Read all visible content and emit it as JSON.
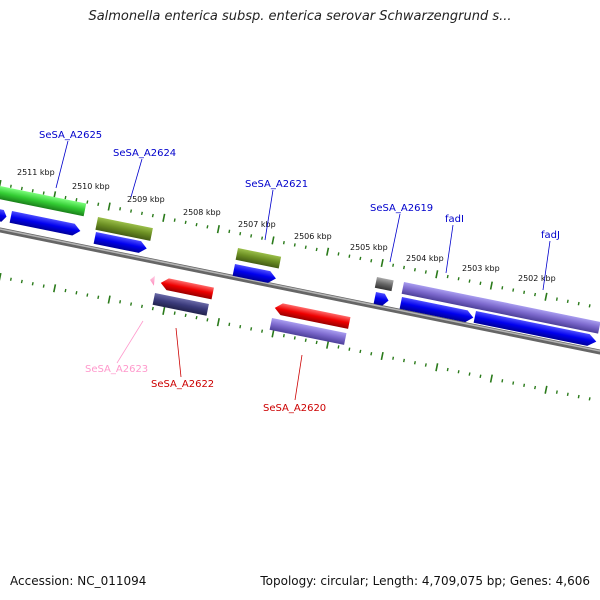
{
  "title": "Salmonella enterica subsp. enterica serovar Schwarzengrund s...",
  "footer": {
    "accession": "Accession: NC_011094",
    "stats": "Topology: circular; Length: 4,709,075 bp; Genes: 4,606"
  },
  "ticks": [
    "2511 kbp",
    "2510 kbp",
    "2509 kbp",
    "2508 kbp",
    "2507 kbp",
    "2506 kbp",
    "2505 kbp",
    "2504 kbp",
    "2503 kbp",
    "2502 kbp"
  ],
  "gene_labels": [
    {
      "text": "SeSA_A2625",
      "color": "#0000cc"
    },
    {
      "text": "SeSA_A2624",
      "color": "#0000cc"
    },
    {
      "text": "SeSA_A2621",
      "color": "#0000cc"
    },
    {
      "text": "SeSA_A2619",
      "color": "#0000cc"
    },
    {
      "text": "fadI",
      "color": "#0000cc"
    },
    {
      "text": "fadJ",
      "color": "#0000cc"
    },
    {
      "text": "SeSA_A2623",
      "color": "#ff99cc"
    },
    {
      "text": "SeSA_A2622",
      "color": "#cc0000"
    },
    {
      "text": "SeSA_A2620",
      "color": "#cc0000"
    }
  ],
  "colors": {
    "backbone": "#888888",
    "tick_marks": "#2a7a1a",
    "cds_blue": "#0000ee",
    "cog_green": "#33cc33",
    "cog_olive": "#6b8e23",
    "cog_red": "#ee0000",
    "cog_navy": "#3a3a7a",
    "cog_lavender": "#7b68cc",
    "cog_grey": "#666666",
    "cog_pink": "#ff99cc"
  }
}
